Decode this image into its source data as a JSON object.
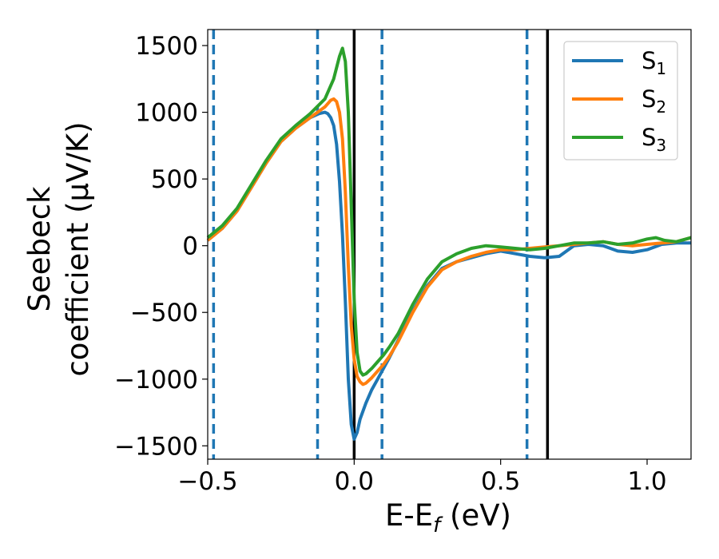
{
  "chart_data": {
    "type": "line",
    "xlabel": "E-E_f (eV)",
    "ylabel_line1": "Seebeck",
    "ylabel_line2": "coefficient  (μV/K)",
    "xlim": [
      -0.5,
      1.15
    ],
    "ylim": [
      -1600,
      1620
    ],
    "grid": false,
    "legend_position": "top-right",
    "xticks": [
      -0.5,
      0.0,
      0.5,
      1.0
    ],
    "xtick_labels": [
      "−0.5",
      "0.0",
      "0.5",
      "1.0"
    ],
    "yticks": [
      -1500,
      -1000,
      -500,
      0,
      500,
      1000,
      1500
    ],
    "ytick_labels": [
      "−1500",
      "−1000",
      "−500",
      "0",
      "500",
      "1000",
      "1500"
    ],
    "vlines_dashed": [
      -0.48,
      -0.125,
      0.095,
      0.59
    ],
    "vlines_solid": [
      0.0,
      0.66
    ],
    "series": [
      {
        "name": "S1",
        "legend_base": "S",
        "legend_sub": "1",
        "color": "#1f77b4",
        "x": [
          -0.5,
          -0.45,
          -0.4,
          -0.35,
          -0.3,
          -0.25,
          -0.2,
          -0.15,
          -0.12,
          -0.1,
          -0.09,
          -0.08,
          -0.07,
          -0.06,
          -0.05,
          -0.04,
          -0.03,
          -0.02,
          -0.01,
          0.0,
          0.01,
          0.02,
          0.04,
          0.06,
          0.08,
          0.1,
          0.12,
          0.15,
          0.2,
          0.25,
          0.3,
          0.35,
          0.4,
          0.45,
          0.5,
          0.55,
          0.6,
          0.65,
          0.7,
          0.75,
          0.8,
          0.85,
          0.9,
          0.95,
          1.0,
          1.05,
          1.1,
          1.15
        ],
        "y": [
          40,
          130,
          260,
          440,
          620,
          780,
          880,
          960,
          990,
          1000,
          990,
          960,
          900,
          760,
          480,
          80,
          -420,
          -1000,
          -1340,
          -1450,
          -1400,
          -1300,
          -1180,
          -1080,
          -1000,
          -920,
          -840,
          -710,
          -490,
          -300,
          -170,
          -120,
          -90,
          -60,
          -40,
          -60,
          -80,
          -90,
          -80,
          0,
          10,
          0,
          -40,
          -50,
          -30,
          10,
          20,
          20
        ]
      },
      {
        "name": "S2",
        "legend_base": "S",
        "legend_sub": "2",
        "color": "#ff7f0e",
        "x": [
          -0.5,
          -0.45,
          -0.4,
          -0.35,
          -0.3,
          -0.25,
          -0.2,
          -0.15,
          -0.1,
          -0.08,
          -0.07,
          -0.06,
          -0.05,
          -0.04,
          -0.03,
          -0.02,
          -0.01,
          0.0,
          0.01,
          0.02,
          0.03,
          0.04,
          0.06,
          0.08,
          0.1,
          0.12,
          0.15,
          0.2,
          0.25,
          0.3,
          0.35,
          0.4,
          0.45,
          0.5,
          0.55,
          0.6,
          0.65,
          0.7,
          0.75,
          0.8,
          0.85,
          0.9,
          0.95,
          1.0,
          1.05,
          1.1,
          1.15
        ],
        "y": [
          40,
          130,
          260,
          440,
          620,
          780,
          880,
          960,
          1040,
          1090,
          1100,
          1080,
          1000,
          800,
          400,
          -150,
          -600,
          -850,
          -980,
          -1020,
          -1040,
          -1030,
          -990,
          -940,
          -890,
          -830,
          -720,
          -500,
          -310,
          -180,
          -120,
          -80,
          -50,
          -30,
          -30,
          -20,
          -10,
          0,
          10,
          20,
          30,
          10,
          0,
          10,
          20,
          30,
          60
        ]
      },
      {
        "name": "S3",
        "legend_base": "S",
        "legend_sub": "3",
        "color": "#2ca02c",
        "x": [
          -0.5,
          -0.45,
          -0.4,
          -0.35,
          -0.3,
          -0.25,
          -0.2,
          -0.15,
          -0.1,
          -0.07,
          -0.05,
          -0.04,
          -0.03,
          -0.02,
          -0.01,
          0.0,
          0.01,
          0.02,
          0.03,
          0.04,
          0.06,
          0.08,
          0.1,
          0.12,
          0.15,
          0.2,
          0.25,
          0.3,
          0.35,
          0.4,
          0.45,
          0.5,
          0.55,
          0.6,
          0.65,
          0.7,
          0.75,
          0.8,
          0.85,
          0.9,
          0.95,
          1.0,
          1.03,
          1.06,
          1.1,
          1.15
        ],
        "y": [
          60,
          150,
          280,
          460,
          640,
          800,
          900,
          990,
          1100,
          1250,
          1420,
          1480,
          1380,
          1000,
          300,
          -400,
          -800,
          -940,
          -970,
          -960,
          -920,
          -870,
          -820,
          -760,
          -660,
          -440,
          -250,
          -120,
          -60,
          -20,
          0,
          -10,
          -20,
          -30,
          -20,
          0,
          20,
          20,
          30,
          10,
          20,
          50,
          60,
          40,
          30,
          60
        ]
      }
    ]
  }
}
